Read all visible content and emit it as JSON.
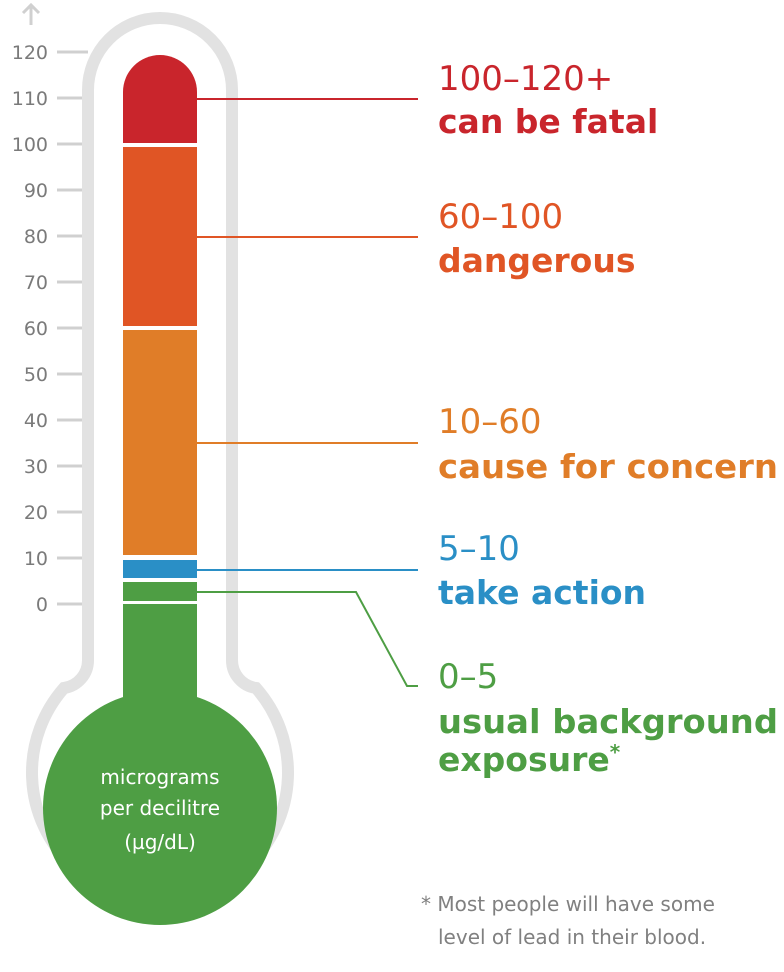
{
  "axis": {
    "ticks": [
      "120",
      "110",
      "100",
      "90",
      "80",
      "70",
      "60",
      "50",
      "40",
      "30",
      "20",
      "10",
      "0"
    ]
  },
  "bulb_label": {
    "line1": "micrograms",
    "line2": "per decilitre",
    "line3": "(µg/dL)"
  },
  "levels": [
    {
      "range": "100–120+",
      "description": "can be fatal",
      "color": "#c9252c"
    },
    {
      "range": "60–100",
      "description": "dangerous",
      "color": "#e05525"
    },
    {
      "range": "10–60",
      "description": "cause for concern",
      "color": "#e07d28"
    },
    {
      "range": "5–10",
      "description": "take action",
      "color": "#2a8fc6"
    },
    {
      "range": "0–5",
      "description": "usual background",
      "description2": "exposure",
      "footnote_mark": "*",
      "color": "#4e9e44"
    }
  ],
  "footnote": {
    "line1": "* Most people will have some",
    "line2": "level of lead in their blood."
  },
  "colors": {
    "outline": "#e2e2e2",
    "ticks": "#d0d0d0",
    "tick_text": "#7a7a7a"
  }
}
